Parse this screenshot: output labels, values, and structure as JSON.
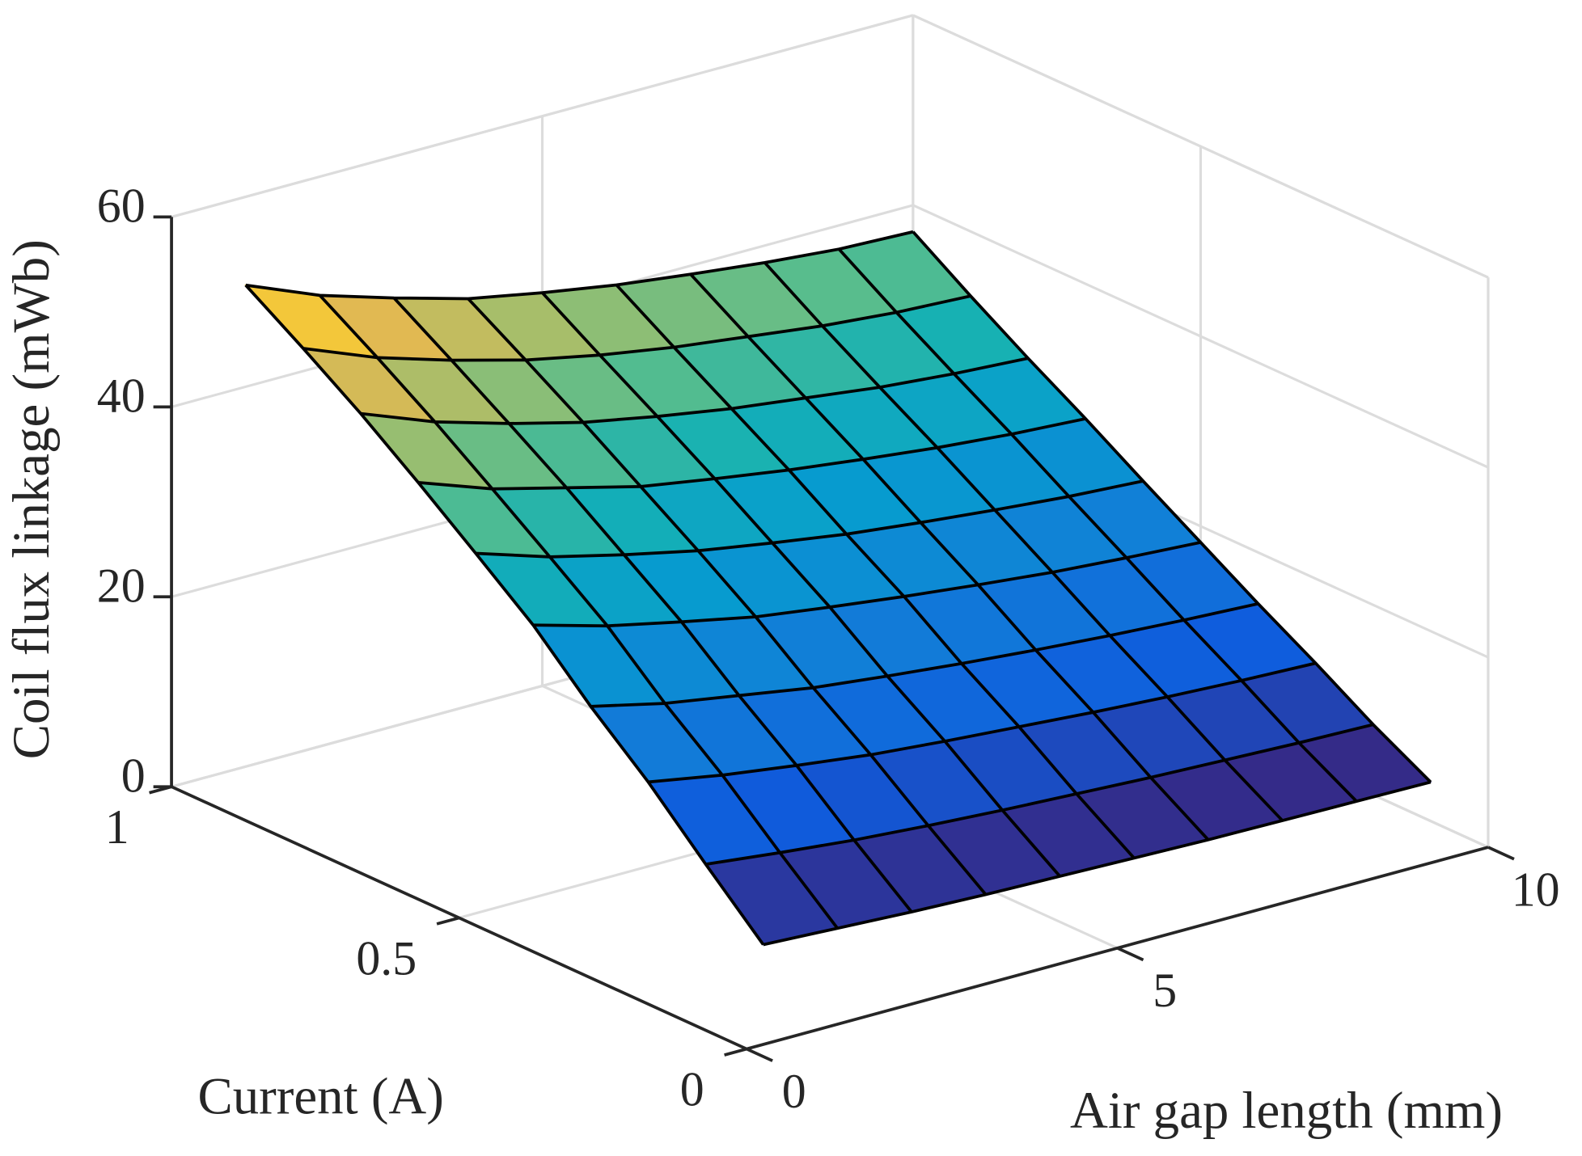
{
  "chart_data": {
    "type": "surface",
    "x_label": "Air gap length (mm)",
    "y_label": "Current (A)",
    "z_label": "Coil flux linkage (mWb)",
    "x": [
      1,
      2,
      3,
      4,
      5,
      6,
      7,
      8,
      9,
      10
    ],
    "y": [
      0.1,
      0.2,
      0.3,
      0.4,
      0.5,
      0.6,
      0.7,
      0.8,
      0.9,
      1.0
    ],
    "z": [
      [
        6.1,
        5.7,
        5.3,
        5.0,
        4.8,
        4.6,
        4.4,
        4.3,
        4.2,
        4.1
      ],
      [
        11.8,
        10.9,
        10.1,
        9.5,
        9.0,
        8.6,
        8.2,
        7.9,
        7.6,
        7.4
      ],
      [
        17.7,
        16.3,
        15.2,
        14.2,
        13.5,
        12.9,
        12.3,
        11.8,
        11.4,
        11.1
      ],
      [
        22.9,
        21.1,
        19.8,
        18.5,
        17.6,
        16.8,
        16.1,
        15.5,
        15.0,
        14.6
      ],
      [
        28.7,
        26.5,
        24.8,
        23.2,
        22.1,
        21.1,
        20.2,
        19.4,
        18.8,
        18.3
      ],
      [
        33.5,
        31.0,
        29.1,
        27.4,
        26.1,
        24.9,
        24.0,
        23.2,
        22.5,
        22.0
      ],
      [
        38.2,
        35.4,
        33.4,
        31.4,
        30.1,
        28.9,
        27.9,
        27.0,
        26.3,
        25.8
      ],
      [
        42.7,
        39.7,
        37.4,
        35.4,
        33.9,
        32.6,
        31.6,
        30.6,
        29.9,
        29.4
      ],
      [
        46.8,
        43.7,
        41.3,
        39.2,
        37.6,
        36.3,
        35.3,
        34.3,
        33.6,
        33.2
      ],
      [
        50.7,
        47.5,
        45.1,
        42.9,
        41.4,
        40.1,
        39.1,
        38.2,
        37.5,
        37.2
      ]
    ],
    "xlim": [
      0,
      10
    ],
    "xticks": [
      0,
      5,
      10
    ],
    "ylim": [
      0,
      1
    ],
    "yticks": [
      0,
      0.5,
      1
    ],
    "zlim": [
      0,
      60
    ],
    "zticks": [
      0,
      20,
      40,
      60
    ],
    "grid": true,
    "colormap": "parula",
    "edge_color": "#000000"
  }
}
